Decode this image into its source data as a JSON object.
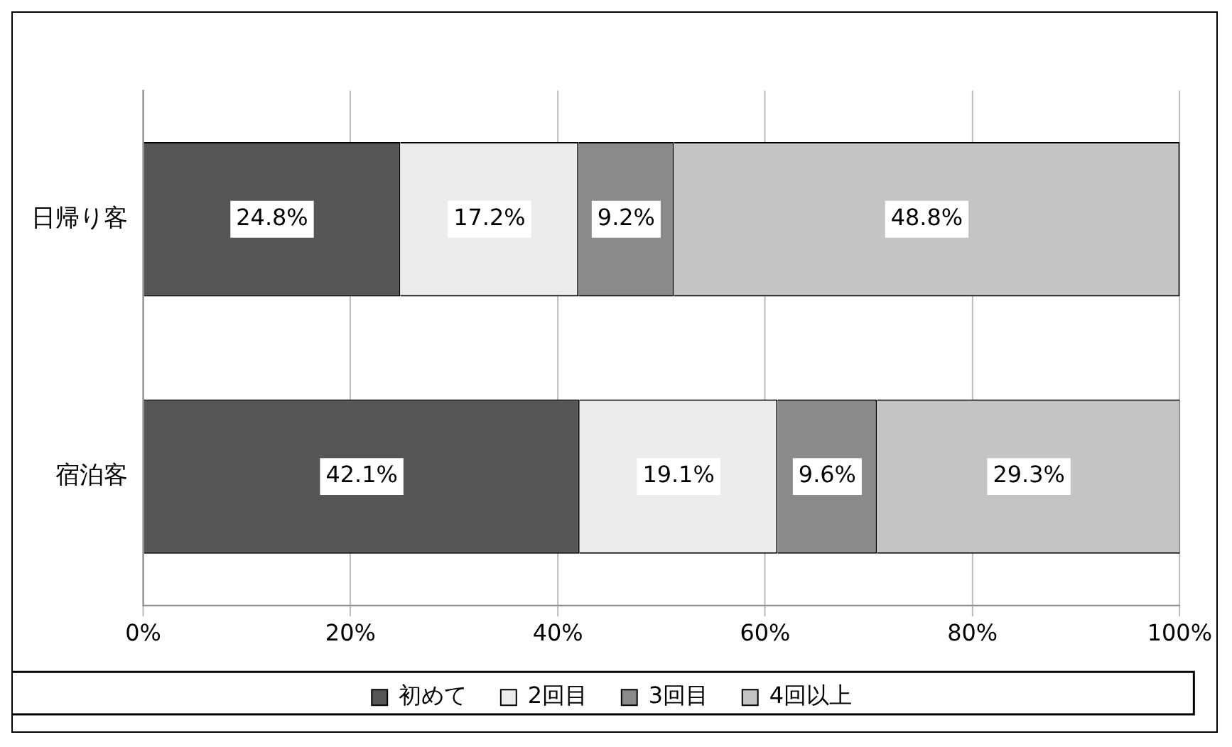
{
  "chart_data": {
    "type": "bar",
    "orientation": "horizontal",
    "stacked": true,
    "categories": [
      "日帰り客",
      "宿泊客"
    ],
    "series": [
      {
        "name": "初めて",
        "color": "#555555",
        "values": [
          24.8,
          42.1
        ],
        "value_labels": [
          "24.8%",
          "42.1%"
        ]
      },
      {
        "name": "2回目",
        "color": "#ececec",
        "values": [
          17.2,
          19.1
        ],
        "value_labels": [
          "17.2%",
          "19.1%"
        ]
      },
      {
        "name": "3回目",
        "color": "#8a8a8a",
        "values": [
          9.2,
          9.6
        ],
        "value_labels": [
          "9.2%",
          "9.6%"
        ]
      },
      {
        "name": "4回以上",
        "color": "#c4c4c4",
        "values": [
          48.8,
          29.3
        ],
        "value_labels": [
          "48.8%",
          "29.3%"
        ]
      }
    ],
    "xlim": [
      0,
      100
    ],
    "xticks": [
      {
        "value": 0,
        "label": "0%"
      },
      {
        "value": 20,
        "label": "20%"
      },
      {
        "value": 40,
        "label": "40%"
      },
      {
        "value": 60,
        "label": "60%"
      },
      {
        "value": 80,
        "label": "80%"
      },
      {
        "value": 100,
        "label": "100%"
      }
    ],
    "grid": "x",
    "legend": "bottom"
  }
}
